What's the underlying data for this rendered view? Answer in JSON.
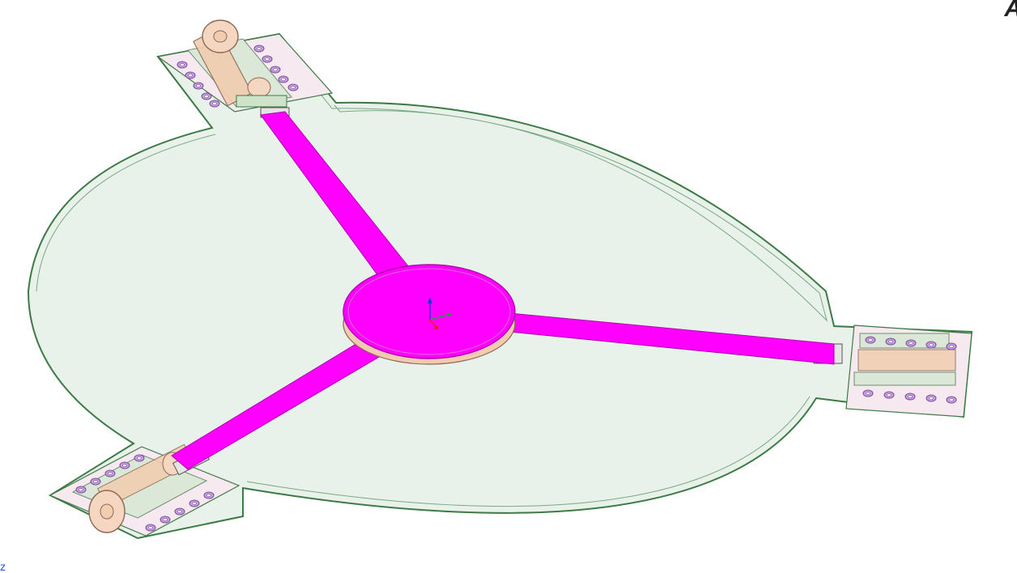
{
  "viewer": {
    "corner_letter": "A",
    "axis_label": "z"
  },
  "colors": {
    "background": "#ffffff",
    "substrate_fill": "#e8f1ea",
    "substrate_edge": "#3d7a45",
    "trace": "#ff00ff",
    "trace_dark": "#b000b0",
    "disk_side": "#f4c9b2",
    "connector": "#f2cdb0",
    "connector_edge": "#8a6a55",
    "pad_hole": "#c6a0e0",
    "axis_x": "#dd2222",
    "axis_y": "#229944",
    "axis_z": "#2233dd"
  },
  "icons": {
    "triad": "coordinate-triad-icon"
  }
}
